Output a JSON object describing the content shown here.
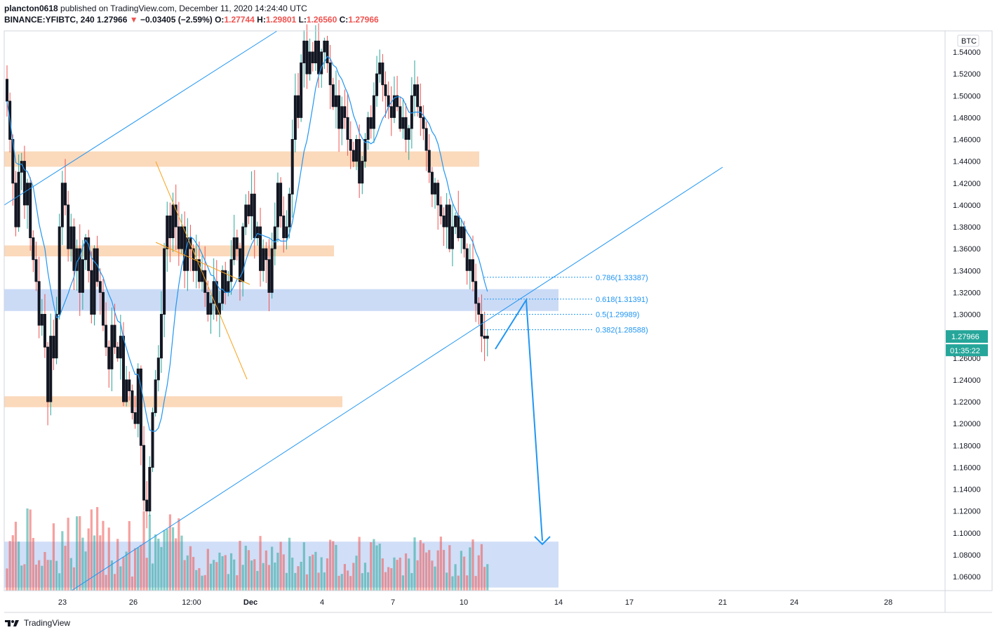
{
  "header": {
    "author": "plancton0618",
    "published_text": "published on TradingView.com, December 11, 2020 14:24:40 UTC",
    "symbol": "BINANCE:YFIBTC, 240",
    "last": "1.27966",
    "arrow": "▼",
    "change": "−0.03405 (−2.59%)",
    "o_label": "O:",
    "o": "1.27744",
    "h_label": "H:",
    "h": "1.29801",
    "l_label": "L:",
    "l": "1.26560",
    "c_label": "C:",
    "c": "1.27966"
  },
  "footer": {
    "brand": "TradingView"
  },
  "colors": {
    "up": "#26a69a",
    "down": "#ef5350",
    "candle": "#131722",
    "zone_orange": "#f9c99e",
    "zone_blue": "#a9c3f0",
    "ma": "#2196f3",
    "channel": "#2196f3",
    "down_channel": "#f7a21b",
    "fib": "#2196f3"
  },
  "chart_data": {
    "type": "candlestick",
    "title": "BINANCE:YFIBTC, 240",
    "currency_label": "BTC",
    "y_ticks": [
      "1.54000",
      "1.52000",
      "1.50000",
      "1.48000",
      "1.46000",
      "1.44000",
      "1.42000",
      "1.40000",
      "1.38000",
      "1.36000",
      "1.34000",
      "1.32000",
      "1.30000",
      "1.28000",
      "1.26000",
      "1.24000",
      "1.22000",
      "1.20000",
      "1.18000",
      "1.16000",
      "1.14000",
      "1.12000",
      "1.10000",
      "1.08000",
      "1.06000"
    ],
    "ylim": [
      1.045,
      1.555
    ],
    "x_ticks": [
      "23",
      "26",
      "12:00",
      "Dec",
      "4",
      "7",
      "10",
      "14",
      "17",
      "21",
      "24",
      "28"
    ],
    "last_price_label": "1.27966",
    "countdown_label": "01:35:22",
    "fib_levels": [
      {
        "label": "0.786(1.33387)",
        "value": 1.33387
      },
      {
        "label": "0.618(1.31391)",
        "value": 1.31391
      },
      {
        "label": "0.5(1.29989)",
        "value": 1.29989
      },
      {
        "label": "0.382(1.28588)",
        "value": 1.28588
      }
    ],
    "zones": [
      {
        "color": "orange",
        "y1": 1.449,
        "y2": 1.435
      },
      {
        "color": "orange",
        "y1": 1.363,
        "y2": 1.353
      },
      {
        "color": "blue",
        "y1": 1.323,
        "y2": 1.303
      },
      {
        "color": "orange",
        "y1": 1.225,
        "y2": 1.215
      }
    ],
    "volume_zone": {
      "y1": 1.092,
      "y2": 1.05
    },
    "closes": [
      1.495,
      1.46,
      1.42,
      1.38,
      1.43,
      1.44,
      1.4,
      1.42,
      1.37,
      1.35,
      1.33,
      1.29,
      1.3,
      1.27,
      1.22,
      1.28,
      1.26,
      1.3,
      1.38,
      1.42,
      1.4,
      1.36,
      1.38,
      1.34,
      1.36,
      1.32,
      1.35,
      1.37,
      1.34,
      1.3,
      1.36,
      1.33,
      1.32,
      1.29,
      1.27,
      1.25,
      1.29,
      1.27,
      1.26,
      1.28,
      1.22,
      1.24,
      1.23,
      1.21,
      1.2,
      1.25,
      1.18,
      1.13,
      1.12,
      1.16,
      1.21,
      1.24,
      1.26,
      1.3,
      1.36,
      1.39,
      1.37,
      1.4,
      1.38,
      1.36,
      1.38,
      1.34,
      1.37,
      1.36,
      1.34,
      1.35,
      1.33,
      1.34,
      1.32,
      1.3,
      1.31,
      1.33,
      1.3,
      1.31,
      1.34,
      1.32,
      1.33,
      1.35,
      1.37,
      1.36,
      1.33,
      1.38,
      1.4,
      1.39,
      1.41,
      1.37,
      1.38,
      1.34,
      1.36,
      1.35,
      1.32,
      1.36,
      1.38,
      1.42,
      1.39,
      1.37,
      1.38,
      1.41,
      1.46,
      1.5,
      1.48,
      1.53,
      1.55,
      1.52,
      1.54,
      1.53,
      1.55,
      1.52,
      1.54,
      1.55,
      1.53,
      1.51,
      1.49,
      1.5,
      1.47,
      1.49,
      1.48,
      1.46,
      1.45,
      1.44,
      1.46,
      1.42,
      1.44,
      1.46,
      1.48,
      1.47,
      1.5,
      1.52,
      1.53,
      1.51,
      1.5,
      1.49,
      1.48,
      1.5,
      1.49,
      1.47,
      1.48,
      1.46,
      1.47,
      1.5,
      1.51,
      1.49,
      1.48,
      1.47,
      1.45,
      1.43,
      1.41,
      1.42,
      1.4,
      1.39,
      1.38,
      1.4,
      1.36,
      1.38,
      1.39,
      1.37,
      1.38,
      1.36,
      1.34,
      1.35,
      1.33,
      1.31,
      1.3,
      1.28,
      1.278,
      1.28
    ]
  }
}
